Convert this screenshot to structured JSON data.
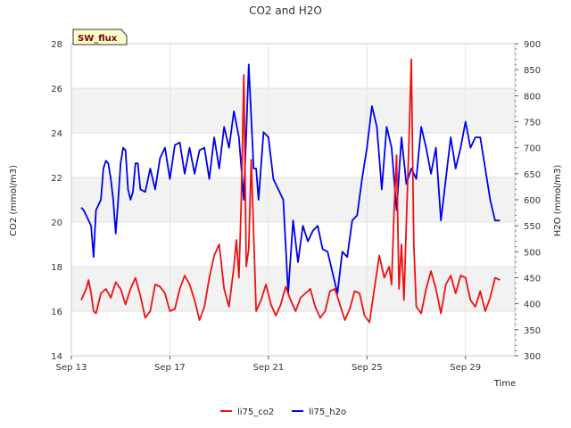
{
  "chart_data": {
    "type": "line",
    "title": "CO2 and H2O",
    "badge": "SW_flux",
    "xlabel": "Time",
    "ylabel_left": "CO2 (mmol/m3)",
    "ylabel_right": "H2O (mmol/m3)",
    "x_range_days": [
      13,
      31
    ],
    "x_ticks": [
      {
        "day": 13,
        "label": "Sep 13"
      },
      {
        "day": 17,
        "label": "Sep 17"
      },
      {
        "day": 21,
        "label": "Sep 21"
      },
      {
        "day": 25,
        "label": "Sep 25"
      },
      {
        "day": 29,
        "label": "Sep 29"
      }
    ],
    "ylim_left": [
      14,
      28
    ],
    "y_ticks_left": [
      "14",
      "16",
      "18",
      "20",
      "22",
      "24",
      "26",
      "28"
    ],
    "ylim_right": [
      300,
      900
    ],
    "y_ticks_right": [
      "300",
      "350",
      "400",
      "450",
      "500",
      "550",
      "600",
      "650",
      "700",
      "750",
      "800",
      "850",
      "900"
    ],
    "bands_left": [
      [
        16,
        18
      ],
      [
        20,
        22
      ],
      [
        24,
        26
      ]
    ],
    "series": [
      {
        "name": "li75_co2",
        "axis": "left",
        "color": "#ee1111",
        "x": [
          13.4,
          13.6,
          13.7,
          13.8,
          13.9,
          14.0,
          14.2,
          14.4,
          14.6,
          14.8,
          15.0,
          15.2,
          15.4,
          15.6,
          15.8,
          16.0,
          16.2,
          16.4,
          16.6,
          16.8,
          17.0,
          17.2,
          17.4,
          17.6,
          17.8,
          18.0,
          18.2,
          18.4,
          18.6,
          18.8,
          19.0,
          19.2,
          19.4,
          19.6,
          19.7,
          19.8,
          19.9,
          20.0,
          20.1,
          20.2,
          20.3,
          20.5,
          20.7,
          20.9,
          21.1,
          21.3,
          21.5,
          21.7,
          21.9,
          22.1,
          22.3,
          22.5,
          22.7,
          22.9,
          23.1,
          23.3,
          23.5,
          23.7,
          23.9,
          24.1,
          24.3,
          24.5,
          24.7,
          24.9,
          25.1,
          25.3,
          25.5,
          25.7,
          25.9,
          26.0,
          26.1,
          26.2,
          26.3,
          26.4,
          26.5,
          26.6,
          26.7,
          26.8,
          26.9,
          27.0,
          27.2,
          27.4,
          27.6,
          27.8,
          28.0,
          28.2,
          28.4,
          28.6,
          28.8,
          29.0,
          29.2,
          29.4,
          29.6,
          29.8,
          30.0,
          30.2,
          30.4
        ],
        "values": [
          16.5,
          17.0,
          17.4,
          16.8,
          16.0,
          15.9,
          16.8,
          17.0,
          16.6,
          17.3,
          17.0,
          16.3,
          17.0,
          17.5,
          16.7,
          15.7,
          16.0,
          17.2,
          17.1,
          16.8,
          16.0,
          16.1,
          17.0,
          17.6,
          17.2,
          16.5,
          15.6,
          16.2,
          17.5,
          18.5,
          19.0,
          17.0,
          16.2,
          18.0,
          19.2,
          17.5,
          21.0,
          26.6,
          18.0,
          18.8,
          22.8,
          16.0,
          16.5,
          17.2,
          16.3,
          15.8,
          16.3,
          17.1,
          16.5,
          16.0,
          16.6,
          16.8,
          17.0,
          16.2,
          15.7,
          16.0,
          16.9,
          17.0,
          16.3,
          15.6,
          16.1,
          16.9,
          16.8,
          15.8,
          15.5,
          17.0,
          18.5,
          17.5,
          18.0,
          17.2,
          20.5,
          23.0,
          17.0,
          19.0,
          16.5,
          20.0,
          23.5,
          27.3,
          19.0,
          16.2,
          15.9,
          17.0,
          17.8,
          17.0,
          15.9,
          17.2,
          17.6,
          16.8,
          17.6,
          17.5,
          16.5,
          16.2,
          16.9,
          16.0,
          16.6,
          17.5,
          17.4
        ]
      },
      {
        "name": "li75_h2o",
        "axis": "right",
        "color": "#0000ee",
        "x": [
          13.4,
          13.5,
          13.6,
          13.7,
          13.8,
          13.9,
          14.0,
          14.1,
          14.2,
          14.3,
          14.4,
          14.5,
          14.6,
          14.7,
          14.8,
          14.9,
          15.0,
          15.1,
          15.2,
          15.3,
          15.4,
          15.5,
          15.6,
          15.7,
          15.8,
          16.0,
          16.2,
          16.4,
          16.6,
          16.8,
          17.0,
          17.2,
          17.4,
          17.6,
          17.8,
          18.0,
          18.2,
          18.4,
          18.6,
          18.8,
          19.0,
          19.2,
          19.4,
          19.6,
          19.8,
          20.0,
          20.2,
          20.4,
          20.5,
          20.6,
          20.8,
          21.0,
          21.2,
          21.4,
          21.6,
          21.8,
          22.0,
          22.2,
          22.4,
          22.6,
          22.8,
          23.0,
          23.2,
          23.4,
          23.6,
          23.8,
          24.0,
          24.2,
          24.4,
          24.6,
          24.8,
          25.0,
          25.2,
          25.4,
          25.6,
          25.8,
          26.0,
          26.2,
          26.4,
          26.6,
          26.8,
          27.0,
          27.2,
          27.4,
          27.6,
          27.8,
          28.0,
          28.2,
          28.4,
          28.6,
          28.8,
          29.0,
          29.2,
          29.4,
          29.6,
          29.8,
          30.0,
          30.2,
          30.4
        ],
        "values": [
          585,
          580,
          570,
          560,
          550,
          490,
          580,
          590,
          600,
          660,
          675,
          670,
          640,
          600,
          535,
          600,
          670,
          700,
          695,
          620,
          600,
          615,
          670,
          670,
          620,
          615,
          660,
          620,
          680,
          700,
          640,
          705,
          710,
          650,
          700,
          650,
          695,
          700,
          640,
          720,
          660,
          740,
          700,
          770,
          720,
          600,
          860,
          660,
          660,
          600,
          730,
          720,
          640,
          620,
          600,
          420,
          560,
          480,
          550,
          520,
          540,
          550,
          505,
          500,
          460,
          420,
          500,
          490,
          560,
          570,
          640,
          700,
          780,
          740,
          620,
          740,
          700,
          580,
          720,
          630,
          660,
          640,
          740,
          700,
          650,
          700,
          560,
          640,
          720,
          660,
          700,
          750,
          700,
          720,
          720,
          660,
          600,
          560,
          560
        ]
      }
    ],
    "legend_position": "bottom-center"
  }
}
